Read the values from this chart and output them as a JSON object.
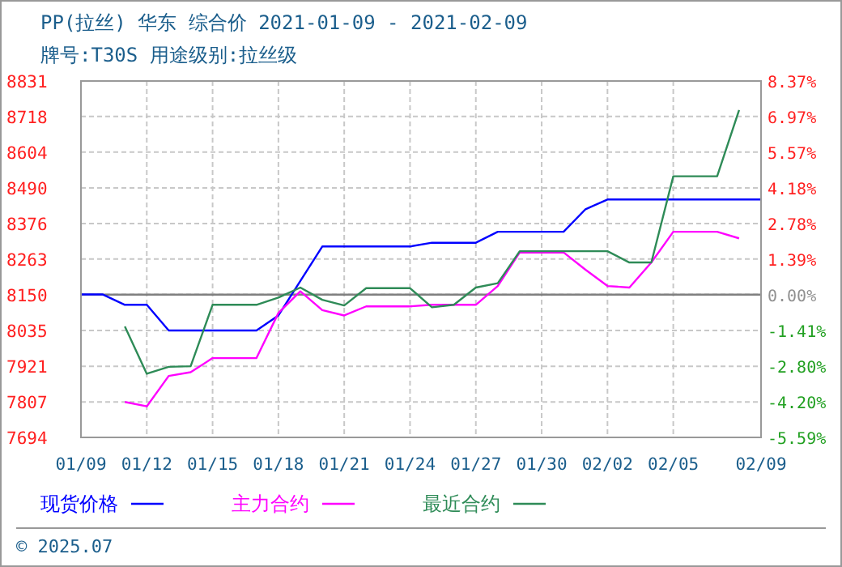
{
  "chart_data": {
    "type": "line",
    "title": "PP(拉丝) 华东 综合价 2021-01-09 - 2021-02-09",
    "subtitle": "牌号:T30S 用途级别:拉丝级",
    "annotations": [
      "© 2025.07"
    ],
    "xlim": [
      "2021-01-09",
      "2021-02-09"
    ],
    "xticks": [
      {
        "value": "2021-01-09",
        "label": "01/09"
      },
      {
        "value": "2021-01-12",
        "label": "01/12"
      },
      {
        "value": "2021-01-15",
        "label": "01/15"
      },
      {
        "value": "2021-01-18",
        "label": "01/18"
      },
      {
        "value": "2021-01-21",
        "label": "01/21"
      },
      {
        "value": "2021-01-24",
        "label": "01/24"
      },
      {
        "value": "2021-01-27",
        "label": "01/27"
      },
      {
        "value": "2021-01-30",
        "label": "01/30"
      },
      {
        "value": "2021-02-02",
        "label": "02/02"
      },
      {
        "value": "2021-02-05",
        "label": "02/05"
      },
      {
        "value": "2021-02-09",
        "label": "02/09"
      }
    ],
    "ylim": [
      7694,
      8831
    ],
    "yticks": [
      7694,
      7807,
      7921,
      8035,
      8150,
      8263,
      8376,
      8490,
      8604,
      8718,
      8831
    ],
    "y2lim": [
      -5.59,
      8.37
    ],
    "y2ticks": [
      {
        "value": -5.59,
        "label": "-5.59%"
      },
      {
        "value": -4.2,
        "label": "-4.20%"
      },
      {
        "value": -2.8,
        "label": "-2.80%"
      },
      {
        "value": -1.41,
        "label": "-1.41%"
      },
      {
        "value": 0,
        "label": "0.00%"
      },
      {
        "value": 1.39,
        "label": "1.39%"
      },
      {
        "value": 2.78,
        "label": "2.78%"
      },
      {
        "value": 4.18,
        "label": "4.18%"
      },
      {
        "value": 5.57,
        "label": "5.57%"
      },
      {
        "value": 6.97,
        "label": "6.97%"
      },
      {
        "value": 8.37,
        "label": "8.37%"
      }
    ],
    "ref_lines": [
      {
        "axis": "y2",
        "value": 0,
        "color": "#808080"
      }
    ],
    "grid": true,
    "legend": "bottom",
    "marker": "none",
    "line_style": "solid",
    "series": [
      {
        "name": "现货价格",
        "color": "#0000ff",
        "x": [
          "2021-01-09",
          "2021-01-10",
          "2021-01-11",
          "2021-01-12",
          "2021-01-13",
          "2021-01-17",
          "2021-01-18",
          "2021-01-20",
          "2021-01-24",
          "2021-01-25",
          "2021-01-27",
          "2021-01-28",
          "2021-01-31",
          "2021-02-01",
          "2021-02-02",
          "2021-02-09"
        ],
        "values": [
          8150,
          8150,
          8117,
          8117,
          8035,
          8035,
          8083,
          8303,
          8303,
          8315,
          8315,
          8350,
          8350,
          8422,
          8453,
          8453
        ]
      },
      {
        "name": "主力合约",
        "color": "#ff00ff",
        "x": [
          "2021-01-11",
          "2021-01-12",
          "2021-01-13",
          "2021-01-14",
          "2021-01-15",
          "2021-01-16",
          "2021-01-17",
          "2021-01-18",
          "2021-01-19",
          "2021-01-20",
          "2021-01-21",
          "2021-01-22",
          "2021-01-23",
          "2021-01-24",
          "2021-01-25",
          "2021-01-26",
          "2021-01-27",
          "2021-01-28",
          "2021-01-29",
          "2021-01-30",
          "2021-01-31",
          "2021-02-01",
          "2021-02-02",
          "2021-02-03",
          "2021-02-04",
          "2021-02-05",
          "2021-02-06",
          "2021-02-07",
          "2021-02-08"
        ],
        "values": [
          7807,
          7793,
          7890,
          7902,
          7947,
          7947,
          7947,
          8091,
          8160,
          8100,
          8083,
          8112,
          8112,
          8112,
          8117,
          8117,
          8117,
          8177,
          8284,
          8284,
          8284,
          8229,
          8177,
          8172,
          8252,
          8350,
          8350,
          8350,
          8329
        ]
      },
      {
        "name": "最近合约",
        "color": "#2e8b57",
        "x": [
          "2021-01-11",
          "2021-01-12",
          "2021-01-13",
          "2021-01-14",
          "2021-01-15",
          "2021-01-16",
          "2021-01-17",
          "2021-01-18",
          "2021-01-19",
          "2021-01-20",
          "2021-01-21",
          "2021-01-22",
          "2021-01-23",
          "2021-01-24",
          "2021-01-25",
          "2021-01-26",
          "2021-01-27",
          "2021-01-28",
          "2021-01-29",
          "2021-01-30",
          "2021-01-31",
          "2021-02-01",
          "2021-02-02",
          "2021-02-03",
          "2021-02-04",
          "2021-02-05",
          "2021-02-06",
          "2021-02-07",
          "2021-02-08"
        ],
        "values": [
          8048,
          7897,
          7919,
          7921,
          8117,
          8117,
          8117,
          8140,
          8172,
          8133,
          8115,
          8170,
          8170,
          8170,
          8109,
          8117,
          8172,
          8186,
          8288,
          8288,
          8288,
          8288,
          8288,
          8252,
          8252,
          8527,
          8527,
          8527,
          8738
        ]
      }
    ]
  }
}
